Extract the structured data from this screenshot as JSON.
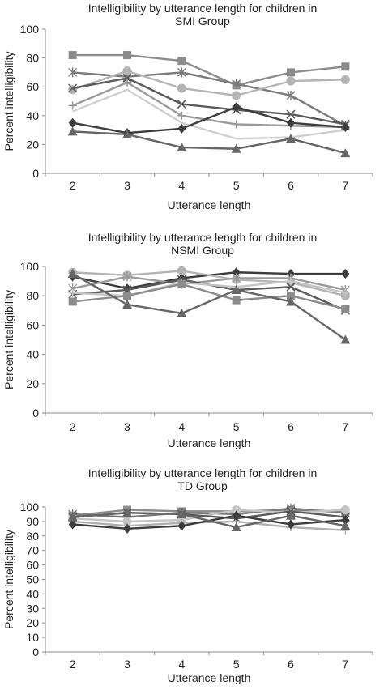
{
  "chart_data": [
    {
      "type": "line",
      "title": [
        "Intelligibility  by utterance length for children in",
        "SMI Group"
      ],
      "xlabel": "Utterance length",
      "ylabel": "Percent intelligibility",
      "x": [
        2,
        3,
        4,
        5,
        6,
        7
      ],
      "ylim": [
        0,
        100
      ],
      "yticks": [
        0,
        20,
        40,
        60,
        80,
        100
      ],
      "grid": false,
      "legend": "none",
      "series": [
        {
          "values": [
            82,
            82,
            78,
            61,
            70,
            74
          ],
          "marker": "square",
          "color": "#8c8c8c"
        },
        {
          "values": [
            70,
            67,
            70,
            62,
            54,
            33
          ],
          "marker": "star",
          "color": "#7a7a7a"
        },
        {
          "values": [
            58,
            71,
            59,
            54,
            64,
            65
          ],
          "marker": "circle",
          "color": "#b4b4b4"
        },
        {
          "values": [
            59,
            66,
            48,
            44,
            41,
            34
          ],
          "marker": "x",
          "color": "#5a5a5a"
        },
        {
          "values": [
            47,
            63,
            40,
            34,
            33,
            32
          ],
          "marker": "plus",
          "color": "#9a9a9a"
        },
        {
          "values": [
            43,
            58,
            35,
            24,
            25,
            30
          ],
          "marker": "none",
          "color": "#cfcfcf"
        },
        {
          "values": [
            35,
            28,
            31,
            46,
            35,
            32
          ],
          "marker": "diamond",
          "color": "#3c3c3c"
        },
        {
          "values": [
            29,
            27,
            18,
            17,
            24,
            14
          ],
          "marker": "triangle",
          "color": "#666666"
        }
      ]
    },
    {
      "type": "line",
      "title": [
        "Intelligibility  by utterance length for children in",
        "NSMI Group"
      ],
      "xlabel": "Utterance length",
      "ylabel": "Percent intelligibility",
      "x": [
        2,
        3,
        4,
        5,
        6,
        7
      ],
      "ylim": [
        0,
        100
      ],
      "yticks": [
        0,
        20,
        40,
        60,
        80,
        100
      ],
      "grid": false,
      "legend": "none",
      "series": [
        {
          "values": [
            93,
            85,
            92,
            96,
            95,
            95
          ],
          "marker": "diamond",
          "color": "#3c3c3c"
        },
        {
          "values": [
            96,
            94,
            97,
            91,
            89,
            80
          ],
          "marker": "circle",
          "color": "#b4b4b4"
        },
        {
          "values": [
            85,
            93,
            88,
            92,
            92,
            84
          ],
          "marker": "star",
          "color": "#9a9a9a"
        },
        {
          "values": [
            81,
            84,
            91,
            84,
            86,
            70
          ],
          "marker": "x",
          "color": "#5a5a5a"
        },
        {
          "values": [
            82,
            80,
            89,
            86,
            90,
            82
          ],
          "marker": "plus",
          "color": "#c4c4c4"
        },
        {
          "values": [
            76,
            80,
            88,
            77,
            80,
            71
          ],
          "marker": "square",
          "color": "#8c8c8c"
        },
        {
          "values": [
            95,
            74,
            68,
            84,
            76,
            50
          ],
          "marker": "triangle",
          "color": "#666666"
        }
      ]
    },
    {
      "type": "line",
      "title": [
        "Intelligibility  by utterance length for children in",
        "TD Group"
      ],
      "xlabel": "Utterance length",
      "ylabel": "Percent intelligibility",
      "x": [
        2,
        3,
        4,
        5,
        6,
        7
      ],
      "ylim": [
        0,
        100
      ],
      "yticks": [
        0,
        10,
        20,
        30,
        40,
        50,
        60,
        70,
        80,
        90,
        100
      ],
      "grid": false,
      "legend": "none",
      "series": [
        {
          "values": [
            94,
            98,
            97,
            97,
            98,
            97
          ],
          "marker": "square",
          "color": "#8c8c8c"
        },
        {
          "values": [
            95,
            93,
            96,
            95,
            99,
            96
          ],
          "marker": "star",
          "color": "#7a7a7a"
        },
        {
          "values": [
            92,
            90,
            91,
            98,
            96,
            98
          ],
          "marker": "circle",
          "color": "#c4c4c4"
        },
        {
          "values": [
            93,
            96,
            95,
            92,
            97,
            93
          ],
          "marker": "x",
          "color": "#5a5a5a"
        },
        {
          "values": [
            90,
            87,
            89,
            90,
            86,
            84
          ],
          "marker": "plus",
          "color": "#b0b0b0"
        },
        {
          "values": [
            88,
            85,
            87,
            94,
            88,
            91
          ],
          "marker": "diamond",
          "color": "#3c3c3c"
        },
        {
          "values": [
            93,
            96,
            95,
            86,
            94,
            87
          ],
          "marker": "triangle",
          "color": "#666666"
        }
      ]
    }
  ]
}
